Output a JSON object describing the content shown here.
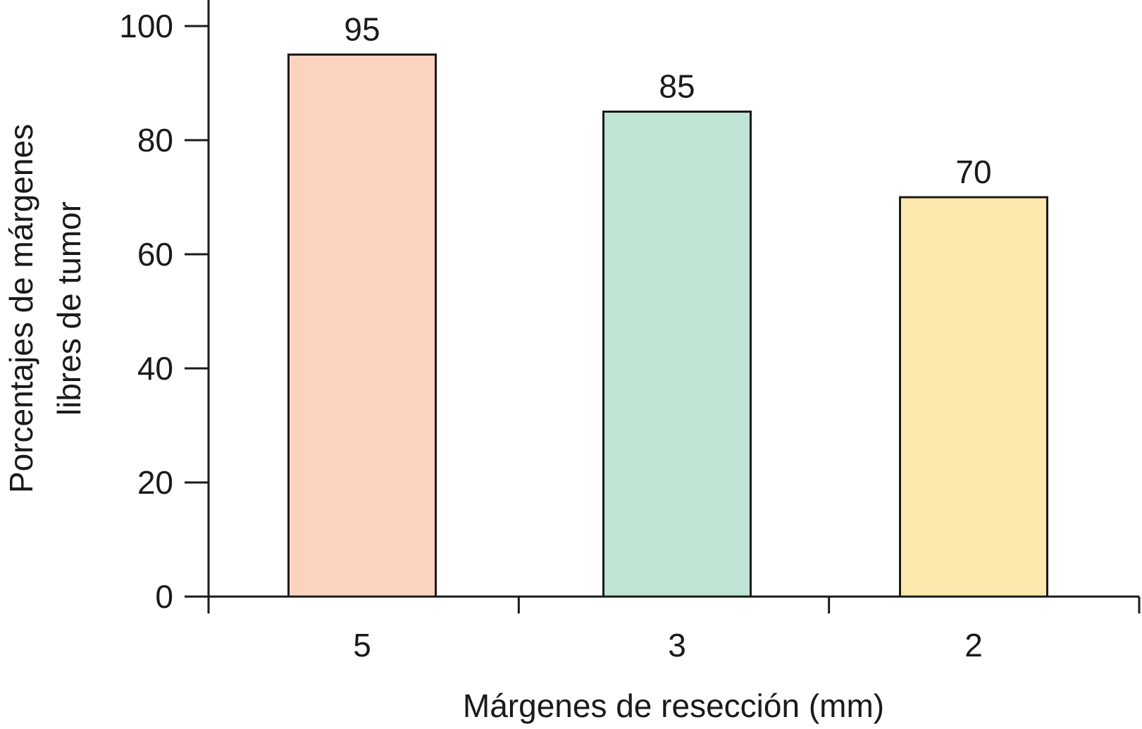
{
  "chart_data": {
    "type": "bar",
    "categories": [
      "5",
      "3",
      "2"
    ],
    "values": [
      95,
      85,
      70
    ],
    "data_labels": [
      "95",
      "85",
      "70"
    ],
    "colors": [
      "#fbd3be",
      "#bfe4d3",
      "#fde8ad"
    ],
    "title": "",
    "xlabel": "Márgenes de resección (mm)",
    "ylabel_lines": [
      "Porcentajes de márgenes",
      "libres de tumor"
    ],
    "ylim": [
      0,
      100
    ],
    "yticks": [
      "0",
      "20",
      "40",
      "60",
      "80",
      "100"
    ],
    "grid": false,
    "legend": "none"
  }
}
